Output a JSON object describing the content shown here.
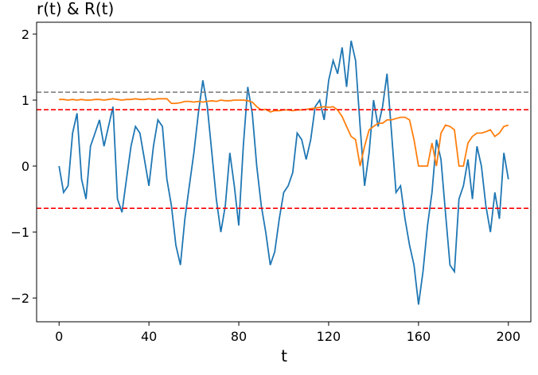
{
  "chart_data": {
    "type": "line",
    "title": "r(t) & R(t)",
    "x_label": "t",
    "x": [
      0,
      2,
      4,
      6,
      8,
      10,
      12,
      14,
      16,
      18,
      20,
      22,
      24,
      26,
      28,
      30,
      32,
      34,
      36,
      38,
      40,
      42,
      44,
      46,
      48,
      50,
      52,
      54,
      56,
      58,
      60,
      62,
      64,
      66,
      68,
      70,
      72,
      74,
      76,
      78,
      80,
      82,
      84,
      86,
      88,
      90,
      92,
      94,
      96,
      98,
      100,
      102,
      104,
      106,
      108,
      110,
      112,
      114,
      116,
      118,
      120,
      122,
      124,
      126,
      128,
      130,
      132,
      134,
      136,
      138,
      140,
      142,
      144,
      146,
      148,
      150,
      152,
      154,
      156,
      158,
      160,
      162,
      164,
      166,
      168,
      170,
      172,
      174,
      176,
      178,
      180,
      182,
      184,
      186,
      188,
      190,
      192,
      194,
      196,
      198,
      200
    ],
    "series": [
      {
        "name": "r(t)",
        "color": "#1f77b4",
        "values": [
          0,
          -0.4,
          -0.3,
          0.5,
          0.8,
          -0.2,
          -0.5,
          0.3,
          0.5,
          0.7,
          0.3,
          0.6,
          0.9,
          -0.5,
          -0.7,
          -0.2,
          0.3,
          0.6,
          0.5,
          0.1,
          -0.3,
          0.3,
          0.7,
          0.6,
          -0.2,
          -0.6,
          -1.2,
          -1.5,
          -0.8,
          -0.3,
          0.2,
          0.8,
          1.3,
          0.9,
          0.2,
          -0.5,
          -1.0,
          -0.6,
          0.2,
          -0.3,
          -0.9,
          0.3,
          1.2,
          0.8,
          0,
          -0.6,
          -1.0,
          -1.5,
          -1.3,
          -0.8,
          -0.4,
          -0.3,
          -0.1,
          0.5,
          0.4,
          0.1,
          0.4,
          0.9,
          1.0,
          0.7,
          1.3,
          1.6,
          1.4,
          1.8,
          1.2,
          1.9,
          1.6,
          0.6,
          -0.3,
          0.2,
          1.0,
          0.6,
          0.9,
          1.4,
          0.5,
          -0.4,
          -0.3,
          -0.8,
          -1.2,
          -1.5,
          -2.1,
          -1.6,
          -0.9,
          -0.4,
          0.4,
          0.1,
          -0.7,
          -1.5,
          -1.6,
          -0.5,
          -0.3,
          0.1,
          -0.5,
          0.3,
          0.0,
          -0.6,
          -1.0,
          -0.4,
          -0.8,
          0.2,
          -0.2
        ]
      },
      {
        "name": "R(t)",
        "color": "#ff7f0e",
        "values": [
          1.01,
          1.01,
          1.0,
          1.01,
          1.0,
          1.01,
          1.0,
          1.0,
          1.01,
          1.01,
          1.0,
          1.01,
          1.02,
          1.01,
          1.0,
          1.01,
          1.01,
          1.02,
          1.01,
          1.01,
          1.02,
          1.01,
          1.02,
          1.02,
          1.02,
          0.95,
          0.95,
          0.96,
          0.98,
          0.98,
          0.97,
          0.98,
          0.97,
          0.98,
          0.99,
          0.98,
          1.0,
          0.99,
          0.99,
          1.0,
          1.0,
          1.0,
          0.99,
          0.97,
          0.9,
          0.85,
          0.86,
          0.82,
          0.84,
          0.84,
          0.85,
          0.85,
          0.84,
          0.85,
          0.85,
          0.86,
          0.87,
          0.88,
          0.89,
          0.9,
          0.89,
          0.9,
          0.85,
          0.75,
          0.6,
          0.45,
          0.4,
          0.0,
          0.3,
          0.55,
          0.6,
          0.65,
          0.65,
          0.7,
          0.7,
          0.72,
          0.74,
          0.74,
          0.7,
          0.4,
          0.0,
          0.0,
          0.0,
          0.35,
          0.0,
          0.5,
          0.62,
          0.6,
          0.55,
          0.0,
          0.0,
          0.35,
          0.45,
          0.5,
          0.5,
          0.52,
          0.55,
          0.45,
          0.5,
          0.6,
          0.62
        ]
      }
    ],
    "hlines": [
      {
        "value": 1.12,
        "color": "#808080"
      },
      {
        "value": 0.855,
        "color": "#ff0000"
      },
      {
        "value": -0.64,
        "color": "#ff0000"
      }
    ],
    "xlim": [
      -10,
      210
    ],
    "ylim": [
      -2.36,
      2.18
    ],
    "xticks": [
      0,
      40,
      80,
      120,
      160,
      200
    ],
    "yticks": [
      {
        "value": -2,
        "label": "−2"
      },
      {
        "value": -1,
        "label": "−1"
      },
      0,
      1,
      2
    ]
  }
}
